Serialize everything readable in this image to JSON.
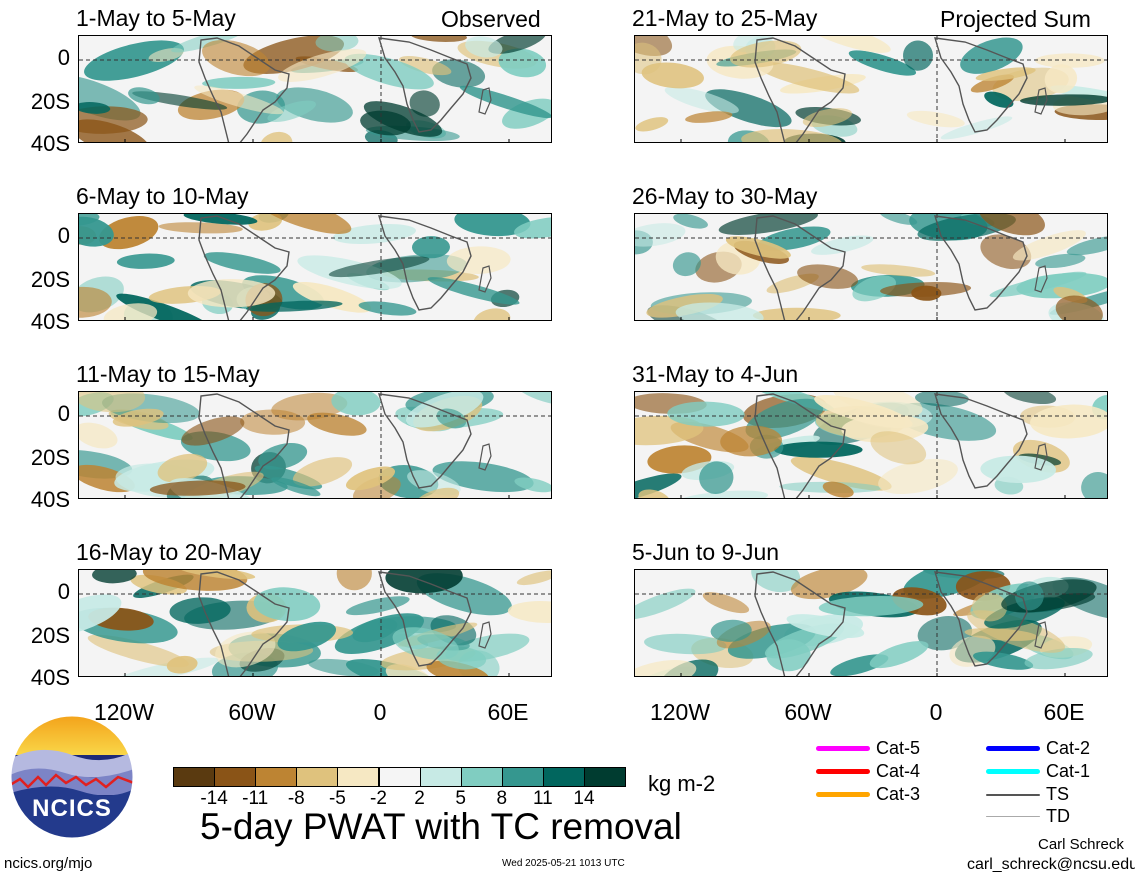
{
  "chart_data": {
    "type": "heatmap",
    "title": "5-day PWAT with TC removal",
    "units": "kg m-2",
    "x_tick_labels": [
      "120W",
      "60W",
      "0",
      "60E"
    ],
    "y_tick_labels": [
      "0",
      "20S",
      "40S"
    ],
    "column_tags": {
      "left": "Observed",
      "right": "Projected Sum"
    },
    "panels": [
      {
        "period": "1-May to 5-May",
        "column": "left"
      },
      {
        "period": "6-May to 10-May",
        "column": "left"
      },
      {
        "period": "11-May to 15-May",
        "column": "left"
      },
      {
        "period": "16-May to 20-May",
        "column": "left"
      },
      {
        "period": "21-May to 25-May",
        "column": "right"
      },
      {
        "period": "26-May to 30-May",
        "column": "right"
      },
      {
        "period": "31-May to 4-Jun",
        "column": "right"
      },
      {
        "period": "5-Jun to 9-Jun",
        "column": "right"
      }
    ],
    "colorbar": {
      "colors": [
        "#5a3a10",
        "#8a5417",
        "#bd8433",
        "#dfc27d",
        "#f6e8c3",
        "#f5f5f5",
        "#c7eae5",
        "#80cdc1",
        "#35978f",
        "#01665e",
        "#003c30"
      ],
      "ticks": [
        "-14",
        "-11",
        "-8",
        "-5",
        "-2",
        "2",
        "5",
        "8",
        "11",
        "14"
      ]
    },
    "tc_legend": [
      {
        "label": "Cat-5",
        "color": "#ff00ff"
      },
      {
        "label": "Cat-4",
        "color": "#ff0000"
      },
      {
        "label": "Cat-3",
        "color": "#ffa500"
      },
      {
        "label": "Cat-2",
        "color": "#0000ff"
      },
      {
        "label": "Cat-1",
        "color": "#00ffff"
      },
      {
        "label": "TS",
        "color": "#555555"
      },
      {
        "label": "TD",
        "color": "#aaaaaa"
      }
    ]
  },
  "logo": {
    "text": "NCICS"
  },
  "footer": {
    "site": "ncics.org/mjo",
    "timestamp": "Wed 2025-05-21 1013 UTC",
    "author": "Carl Schreck",
    "email": "carl_schreck@ncsu.edu"
  }
}
